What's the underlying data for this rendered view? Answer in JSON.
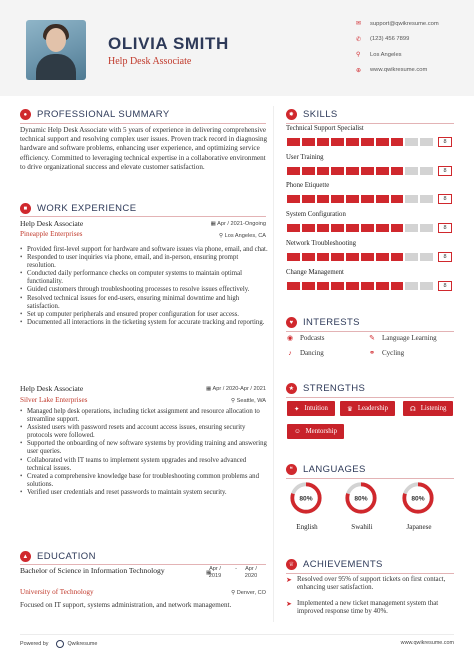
{
  "header": {
    "name": "OLIVIA SMITH",
    "title": "Help Desk Associate",
    "contact": [
      {
        "icon": "email-icon",
        "glyph": "✉",
        "text": "support@qwikresume.com"
      },
      {
        "icon": "phone-icon",
        "glyph": "✆",
        "text": "(123) 456 7899"
      },
      {
        "icon": "location-icon",
        "glyph": "⚲",
        "text": "Los Angeles"
      },
      {
        "icon": "globe-icon",
        "glyph": "⊕",
        "text": "www.qwikresume.com"
      }
    ]
  },
  "summary": {
    "heading": "PROFESSIONAL SUMMARY",
    "text": "Dynamic Help Desk Associate with 5 years of experience in delivering comprehensive technical support and resolving complex user issues. Proven track record in diagnosing hardware and software problems, enhancing user experience, and optimizing service efficiency. Committed to leveraging technical expertise in a collaborative environment to drive organizational success and elevate customer satisfaction."
  },
  "experience": {
    "heading": "WORK EXPERIENCE",
    "jobs": [
      {
        "role": "Help Desk Associate",
        "dates": "Apr / 2021-Ongoing",
        "company": "Pineapple Enterprises",
        "location": "Los Angeles, CA",
        "bullets": [
          "Provided first-level support for hardware and software issues via phone, email, and chat.",
          "Responded to user inquiries via phone, email, and in-person, ensuring prompt resolution.",
          "Conducted daily performance checks on computer systems to maintain optimal functionality.",
          "Guided customers through troubleshooting processes to resolve issues effectively.",
          "Resolved technical issues for end-users, ensuring minimal downtime and high satisfaction.",
          "Set up computer peripherals and ensured proper configuration for user access.",
          "Documented all interactions in the ticketing system for accurate tracking and reporting."
        ]
      },
      {
        "role": "Help Desk Associate",
        "dates": "Apr / 2020-Apr / 2021",
        "company": "Silver Lake Enterprises",
        "location": "Seattle, WA",
        "bullets": [
          "Managed help desk operations, including ticket assignment and resource allocation to streamline support.",
          "Assisted users with password resets and account access issues, ensuring security protocols were followed.",
          "Supported the onboarding of new software systems by providing training and answering user queries.",
          "Collaborated with IT teams to implement system upgrades and resolve advanced technical issues.",
          "Created a comprehensive knowledge base for troubleshooting common problems and solutions.",
          "Verified user credentials and reset passwords to maintain system security."
        ]
      }
    ]
  },
  "education": {
    "heading": "EDUCATION",
    "degree": "Bachelor of Science in Information Technology",
    "date_month_start": "Apr /",
    "date_year_start": "2019",
    "date_month_end": "Apr /",
    "date_year_end": "2020",
    "school": "University of Technology",
    "location": "Denver, CO",
    "focus": "Focused on IT support, systems administration, and network management."
  },
  "skills": {
    "heading": "SKILLS",
    "max": 10,
    "items": [
      {
        "name": "Technical Support Specialist",
        "score": 8
      },
      {
        "name": "User Training",
        "score": 8
      },
      {
        "name": "Phone Etiquette",
        "score": 8
      },
      {
        "name": "System Configuration",
        "score": 8
      },
      {
        "name": "Network Troubleshooting",
        "score": 8
      },
      {
        "name": "Change Management",
        "score": 8
      }
    ]
  },
  "interests": {
    "heading": "INTERESTS",
    "items": [
      {
        "icon": "podcast-icon",
        "glyph": "◉",
        "label": "Podcasts"
      },
      {
        "icon": "language-learning-icon",
        "glyph": "✎",
        "label": "Language Learning"
      },
      {
        "icon": "dancing-icon",
        "glyph": "♪",
        "label": "Dancing"
      },
      {
        "icon": "cycling-icon",
        "glyph": "⚭",
        "label": "Cycling"
      }
    ]
  },
  "strengths": {
    "heading": "STRENGTHS",
    "items": [
      {
        "icon": "intuition-icon",
        "glyph": "✦",
        "label": "Intuition"
      },
      {
        "icon": "leadership-icon",
        "glyph": "♛",
        "label": "Leadership"
      },
      {
        "icon": "listening-icon",
        "glyph": "☊",
        "label": "Listening"
      },
      {
        "icon": "mentorship-icon",
        "glyph": "☺",
        "label": "Mentorship"
      }
    ]
  },
  "languages": {
    "heading": "LANGUAGES",
    "items": [
      {
        "name": "English",
        "percent": 80,
        "label": "80%"
      },
      {
        "name": "Swahili",
        "percent": 80,
        "label": "80%"
      },
      {
        "name": "Japanese",
        "percent": 80,
        "label": "80%"
      }
    ]
  },
  "achievements": {
    "heading": "ACHIEVEMENTS",
    "items": [
      "Resolved over 95% of support tickets on first contact, enhancing user satisfaction.",
      "Implemented a new ticket management system that improved response time by 40%."
    ]
  },
  "footer": {
    "powered_by": "Powered by",
    "brand": "Qwikresume",
    "site": "www.qwikresume.com"
  },
  "colors": {
    "accent": "#d0282d",
    "heading": "#2e3a59",
    "bar_off": "#d3d3d3"
  }
}
